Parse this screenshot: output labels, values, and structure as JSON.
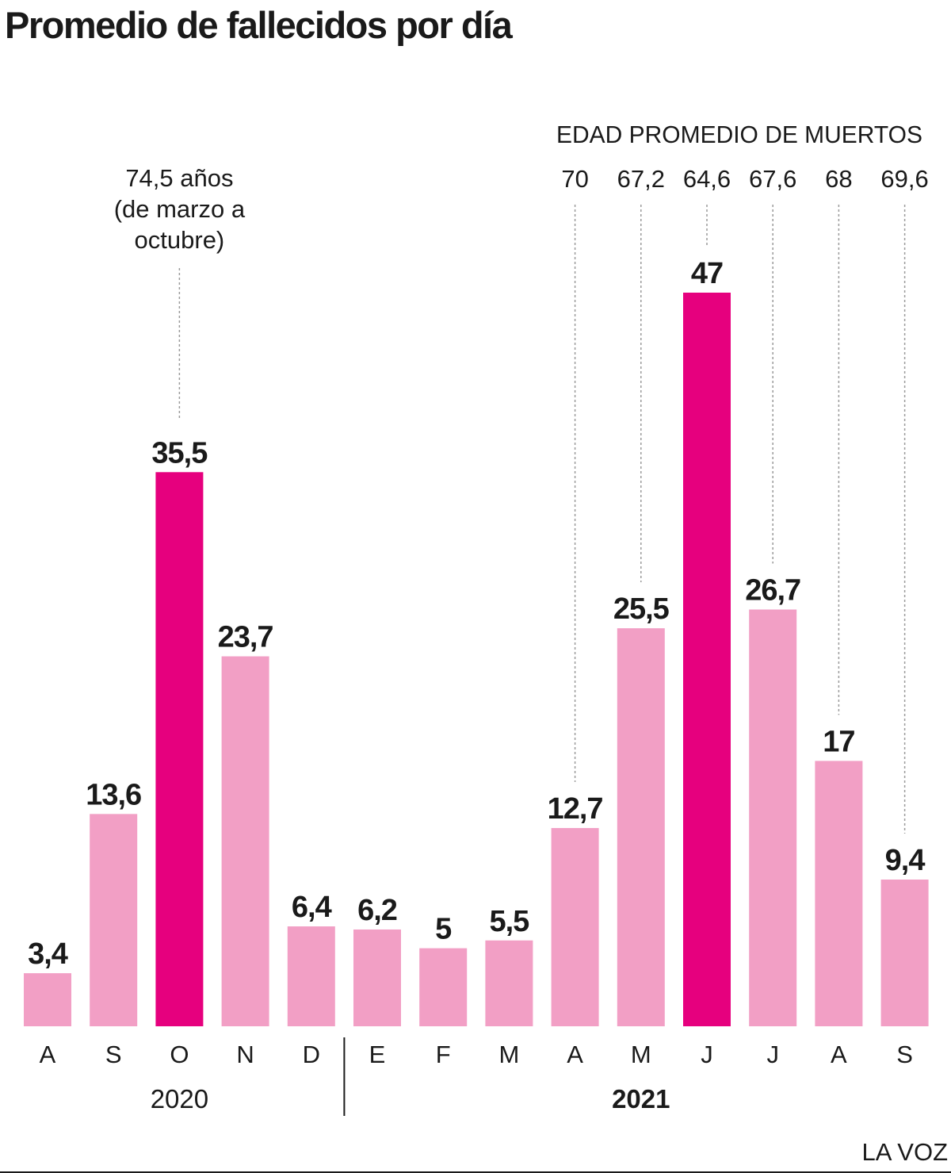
{
  "title": "Promedio de fallecidos por día",
  "credit": "LA VOZ",
  "chart_data": {
    "type": "bar",
    "title": "Promedio de fallecidos por día",
    "categories": [
      "A",
      "S",
      "O",
      "N",
      "D",
      "E",
      "F",
      "M",
      "A",
      "M",
      "J",
      "J",
      "A",
      "S"
    ],
    "values": [
      3.4,
      13.6,
      35.5,
      23.7,
      6.4,
      6.2,
      5,
      5.5,
      12.7,
      25.5,
      47,
      26.7,
      17,
      9.4
    ],
    "value_labels": [
      "3,4",
      "13,6",
      "35,5",
      "23,7",
      "6,4",
      "6,2",
      "5",
      "5,5",
      "12,7",
      "25,5",
      "47",
      "26,7",
      "17",
      "9,4"
    ],
    "highlighted": [
      false,
      false,
      true,
      false,
      false,
      false,
      false,
      false,
      false,
      false,
      true,
      false,
      false,
      false
    ],
    "years": [
      {
        "label": "2020",
        "first_index": 0,
        "last_index": 4
      },
      {
        "label": "2021",
        "first_index": 5,
        "last_index": 13
      }
    ],
    "ylim": [
      0,
      47
    ],
    "grid": false,
    "colors": {
      "bar": "#f29fc5",
      "highlight": "#e6007e",
      "text": "#1a1a1a",
      "guide": "#9a9a9a"
    },
    "age_header": "EDAD PROMEDIO DE MUERTOS",
    "age_values": [
      {
        "index": 8,
        "label": "70"
      },
      {
        "index": 9,
        "label": "67,2"
      },
      {
        "index": 10,
        "label": "64,6"
      },
      {
        "index": 11,
        "label": "67,6"
      },
      {
        "index": 12,
        "label": "68"
      },
      {
        "index": 13,
        "label": "69,6"
      }
    ],
    "annotation": {
      "index": 2,
      "lines": [
        "74,5 años",
        "(de marzo a",
        "octubre)"
      ]
    }
  }
}
